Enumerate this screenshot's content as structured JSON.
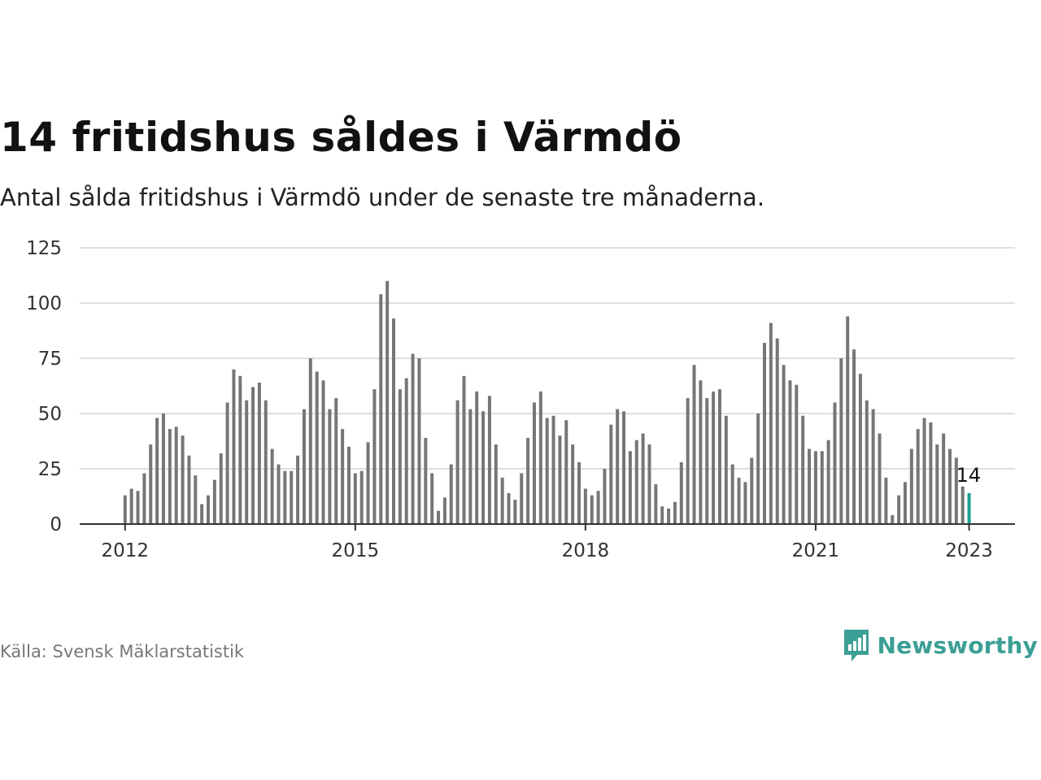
{
  "title": "14 fritidshus såldes i Värmdö",
  "subtitle": "Antal sålda fritidshus i Värmdö under de senaste tre månaderna.",
  "source": "Källa: Svensk Mäklarstatistik",
  "logo": {
    "text": "Newsworthy",
    "icon": "newsworthy-logo-icon",
    "color": "#3c9f95"
  },
  "colors": {
    "bar": "#767676",
    "highlight": "#1a9e8f",
    "grid": "#dedede",
    "axis": "#333333"
  },
  "chart_data": {
    "type": "bar",
    "ylim": [
      0,
      125
    ],
    "yticks": [
      0,
      25,
      50,
      75,
      100,
      125
    ],
    "xticks": [
      {
        "label": "2012",
        "index": 0
      },
      {
        "label": "2015",
        "index": 36
      },
      {
        "label": "2018",
        "index": 72
      },
      {
        "label": "2021",
        "index": 108
      },
      {
        "label": "2023",
        "index": 132
      }
    ],
    "start": "2012-01",
    "grid": true,
    "legend": "none",
    "values": [
      13,
      16,
      15,
      23,
      36,
      48,
      50,
      43,
      44,
      40,
      31,
      22,
      9,
      13,
      20,
      32,
      55,
      70,
      67,
      56,
      62,
      64,
      56,
      34,
      27,
      24,
      24,
      31,
      52,
      75,
      69,
      65,
      52,
      57,
      43,
      35,
      23,
      24,
      37,
      61,
      104,
      110,
      93,
      61,
      66,
      77,
      75,
      39,
      23,
      6,
      12,
      27,
      56,
      67,
      52,
      60,
      51,
      58,
      36,
      21,
      14,
      11,
      23,
      39,
      55,
      60,
      48,
      49,
      40,
      47,
      36,
      28,
      16,
      13,
      15,
      25,
      45,
      52,
      51,
      33,
      38,
      41,
      36,
      18,
      8,
      7,
      10,
      28,
      57,
      72,
      65,
      57,
      60,
      61,
      49,
      27,
      21,
      19,
      30,
      50,
      82,
      91,
      84,
      72,
      65,
      63,
      49,
      34,
      33,
      33,
      38,
      55,
      75,
      94,
      79,
      68,
      56,
      52,
      41,
      21,
      4,
      13,
      19,
      34,
      43,
      48,
      46,
      36,
      41,
      34,
      30,
      17,
      14
    ],
    "annotation": {
      "label": "14",
      "index": 132
    }
  }
}
